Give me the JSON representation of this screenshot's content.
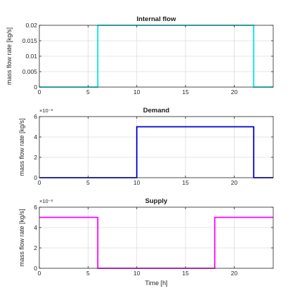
{
  "chart_data": [
    {
      "type": "line",
      "title": "Internal flow",
      "xlabel": "",
      "ylabel": "mass flow rate [kg/s]",
      "xlim": [
        0,
        24
      ],
      "ylim": [
        0,
        0.02
      ],
      "xticks": [
        0,
        5,
        10,
        15,
        20
      ],
      "xtick_labels": [
        "0",
        "5",
        "10",
        "15",
        "20"
      ],
      "yticks": [
        0,
        0.005,
        0.01,
        0.015,
        0.02
      ],
      "ytick_labels": [
        "0",
        "0.005",
        "0.01",
        "0.015",
        "0.02"
      ],
      "exponent_label": "",
      "grid": true,
      "color": "#00e5e5",
      "series": [
        {
          "x": [
            0,
            6,
            6,
            22,
            22,
            24
          ],
          "y": [
            0,
            0,
            0.02,
            0.02,
            0,
            0
          ]
        }
      ]
    },
    {
      "type": "line",
      "title": "Demand",
      "xlabel": "",
      "ylabel": "mass flow rate [kg/s]",
      "xlim": [
        0,
        24
      ],
      "ylim": [
        0,
        0.006
      ],
      "xticks": [
        0,
        5,
        10,
        15,
        20
      ],
      "xtick_labels": [
        "0",
        "5",
        "10",
        "15",
        "20"
      ],
      "yticks": [
        0,
        0.002,
        0.004,
        0.006
      ],
      "ytick_labels": [
        "0",
        "2",
        "4",
        "6"
      ],
      "exponent_label": "×10⁻³",
      "grid": true,
      "color": "#0000cc",
      "series": [
        {
          "x": [
            0,
            10,
            10,
            22,
            22,
            24
          ],
          "y": [
            0,
            0,
            0.005,
            0.005,
            0,
            0
          ]
        }
      ]
    },
    {
      "type": "line",
      "title": "Supply",
      "xlabel": "Time [h]",
      "ylabel": "mass flow rate [kg/s]",
      "xlim": [
        0,
        24
      ],
      "ylim": [
        0,
        0.006
      ],
      "xticks": [
        0,
        5,
        10,
        15,
        20
      ],
      "xtick_labels": [
        "0",
        "5",
        "10",
        "15",
        "20"
      ],
      "yticks": [
        0,
        0.002,
        0.004,
        0.006
      ],
      "ytick_labels": [
        "0",
        "2",
        "4",
        "6"
      ],
      "exponent_label": "×10⁻³",
      "grid": true,
      "color": "#ff00ff",
      "series": [
        {
          "x": [
            0,
            6,
            6,
            18,
            18,
            24
          ],
          "y": [
            0.005,
            0.005,
            0,
            0,
            0.005,
            0.005
          ]
        }
      ]
    }
  ]
}
